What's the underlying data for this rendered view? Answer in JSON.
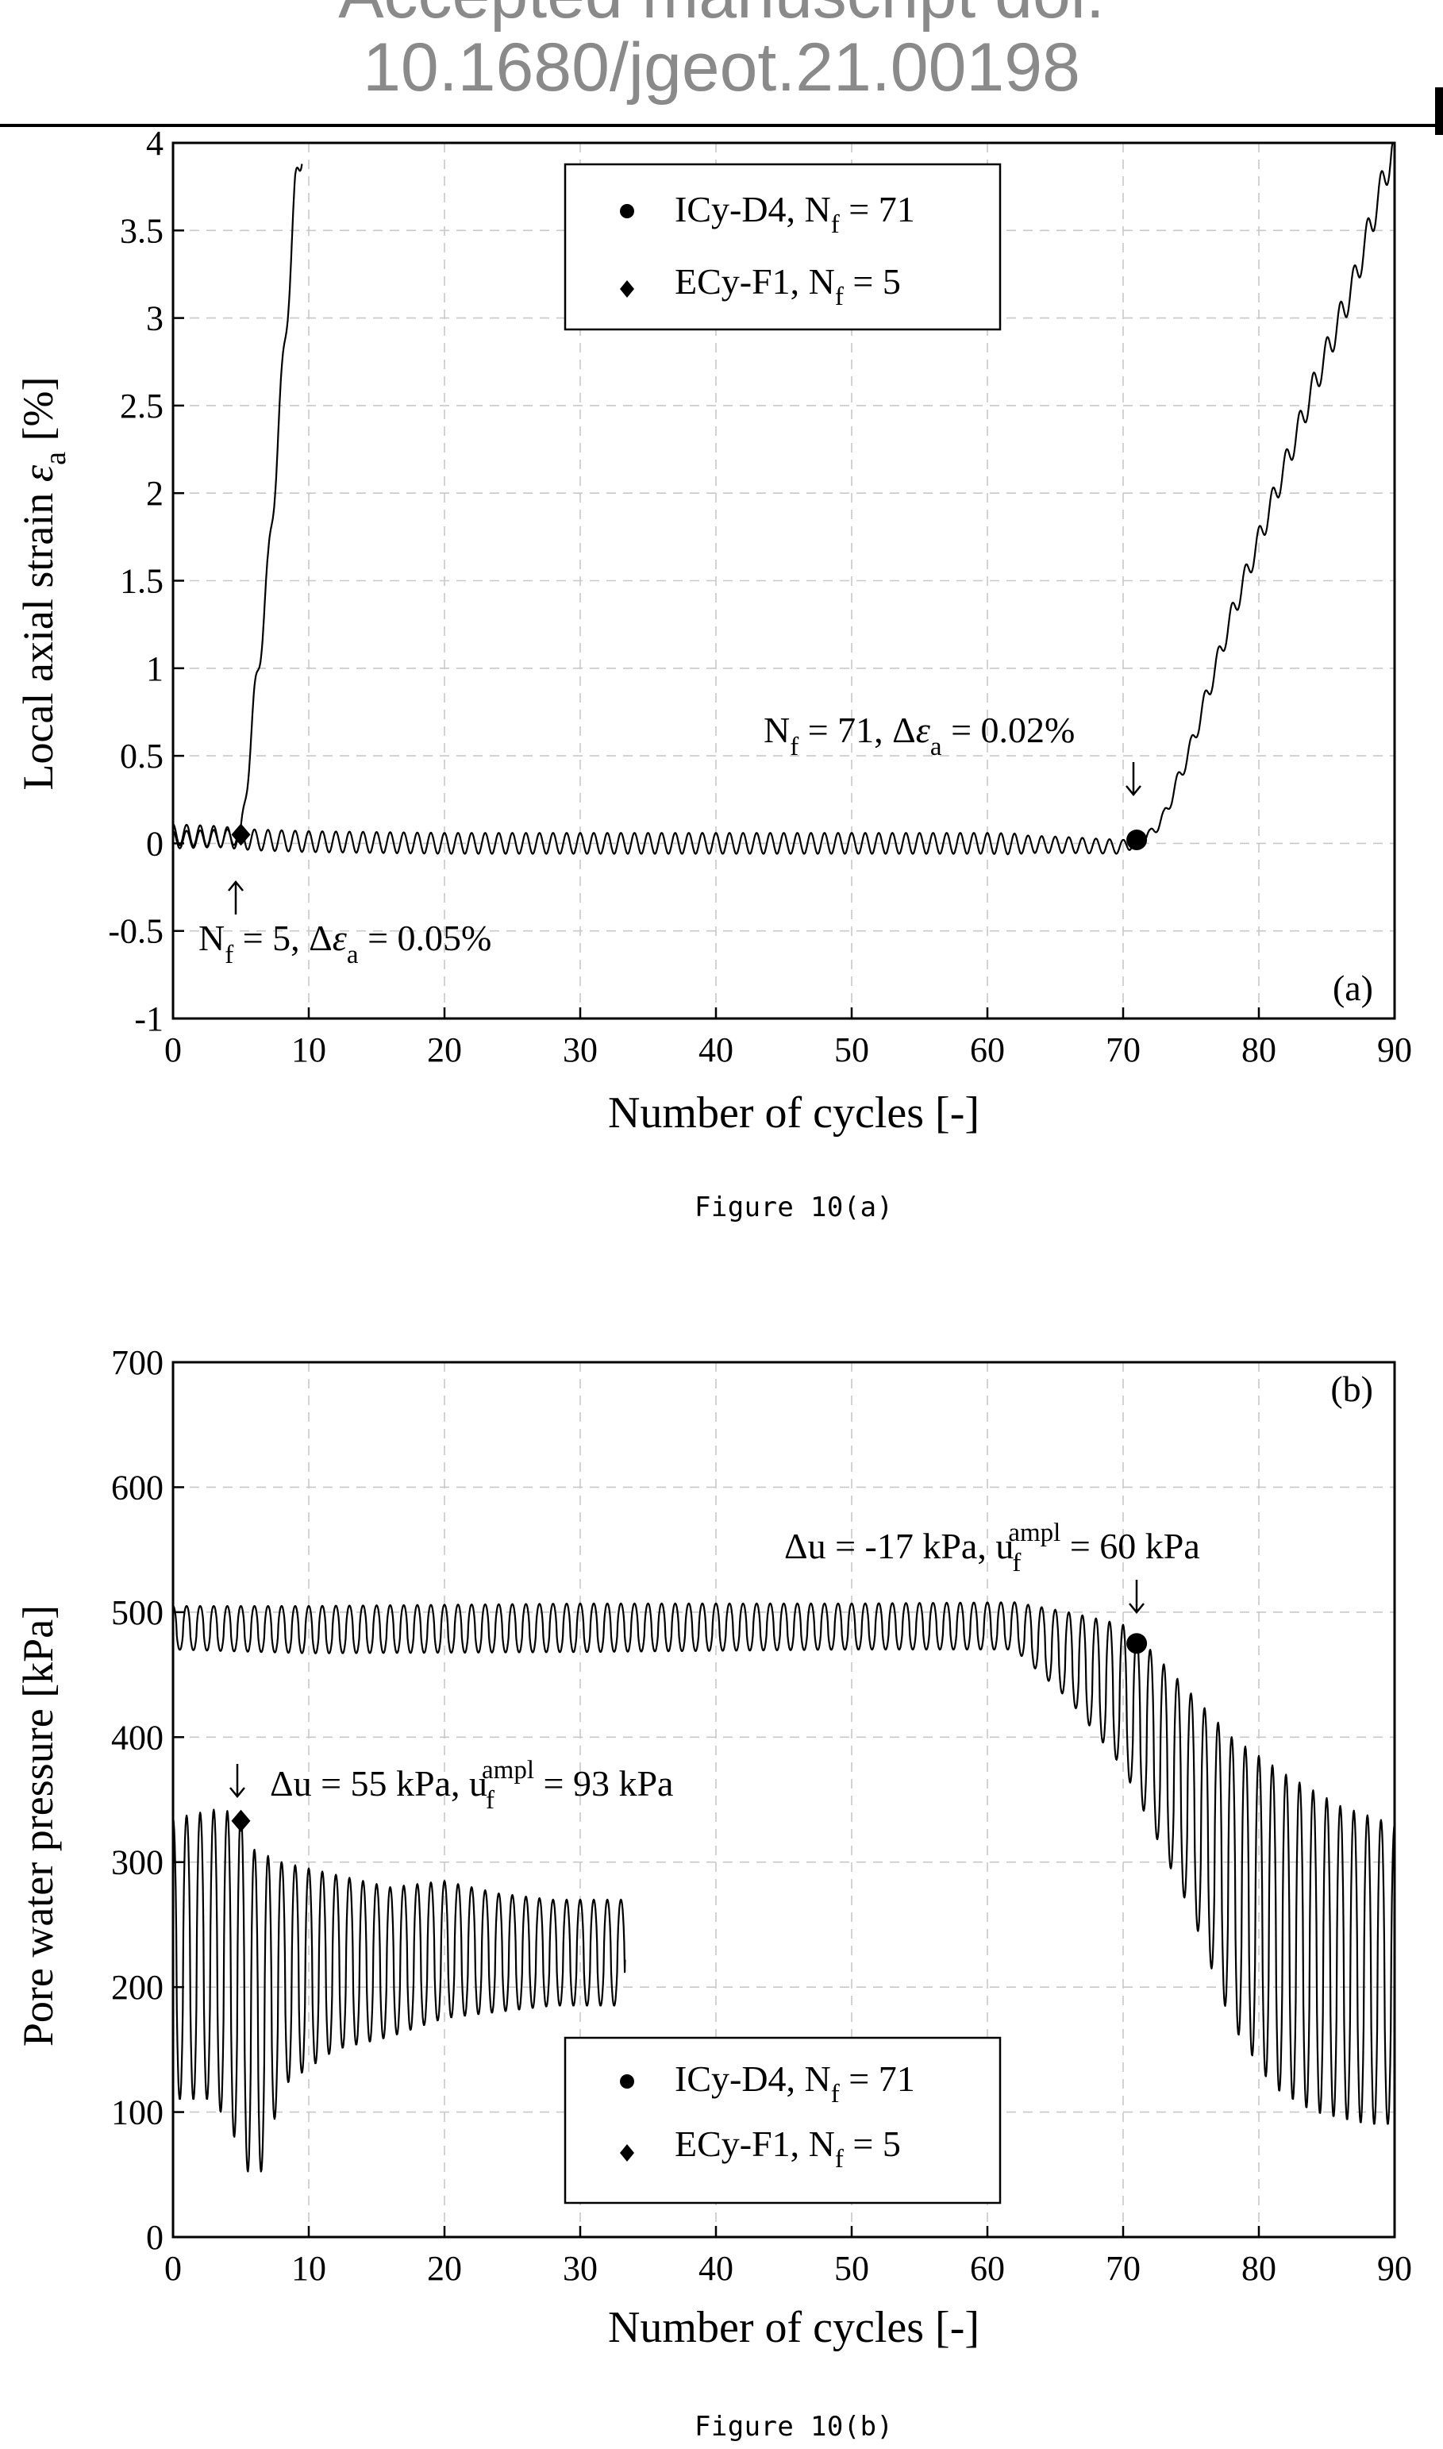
{
  "header": {
    "line1": "Accepted manuscript doi:",
    "line2": "10.1680/jgeot.21.00198"
  },
  "legend": {
    "icy": "ICy-D4, N",
    "icy_sub": "f",
    "icy_val": " = 71",
    "ecy": "ECy-F1, N",
    "ecy_sub": "f",
    "ecy_val": " = 5"
  },
  "chart_data": [
    {
      "type": "line",
      "panel": "(a)",
      "caption": "Figure 10(a)",
      "xlabel": "Number of cycles  [-]",
      "ylabel_main": "Local axial strain ",
      "ylabel_sym": "ε",
      "ylabel_sub": "a",
      "ylabel_unit": " [%]",
      "xlim": [
        0,
        90
      ],
      "ylim": [
        -1,
        4
      ],
      "xticks": [
        0,
        10,
        20,
        30,
        40,
        50,
        60,
        70,
        80,
        90
      ],
      "yticks": [
        -1,
        -0.5,
        0,
        0.5,
        1,
        1.5,
        2,
        2.5,
        3,
        3.5,
        4
      ],
      "ytick_labels": [
        "-1",
        "-0.5",
        "0",
        "0.5",
        "1",
        "1.5",
        "2",
        "2.5",
        "3",
        "3.5",
        "4"
      ],
      "grid": true,
      "legend_position": "top-center",
      "series": [
        {
          "name": "ICy-D4, Nf = 71",
          "marker": "circle",
          "failure_point": [
            71,
            0.02
          ],
          "trace": [
            [
              0,
              0.05
            ],
            [
              3,
              0.04
            ],
            [
              6,
              0.02
            ],
            [
              10,
              0.01
            ],
            [
              20,
              0.0
            ],
            [
              30,
              0.0
            ],
            [
              40,
              0.0
            ],
            [
              50,
              0.0
            ],
            [
              60,
              0.0
            ],
            [
              66,
              -0.01
            ],
            [
              70,
              -0.02
            ],
            [
              71,
              0.02
            ],
            [
              72,
              0.05
            ],
            [
              73,
              0.15
            ],
            [
              75,
              0.55
            ],
            [
              78,
              1.3
            ],
            [
              81,
              1.95
            ],
            [
              84,
              2.6
            ],
            [
              87,
              3.2
            ],
            [
              88.5,
              3.6
            ],
            [
              90,
              4.0
            ]
          ],
          "amplitude": [
            [
              0,
              0.06
            ],
            [
              62,
              0.06
            ],
            [
              63,
              0.05
            ],
            [
              70,
              0.04
            ],
            [
              72,
              0.03
            ],
            [
              76,
              0.06
            ],
            [
              90,
              0.1
            ]
          ],
          "cycles": 90
        },
        {
          "name": "ECy-F1, Nf = 5",
          "marker": "diamond",
          "failure_point": [
            5,
            0.05
          ],
          "trace": [
            [
              0,
              0.02
            ],
            [
              4,
              0.03
            ],
            [
              5,
              0.05
            ],
            [
              5.5,
              0.4
            ],
            [
              6,
              0.8
            ],
            [
              7,
              1.55
            ],
            [
              8,
              2.6
            ],
            [
              9,
              3.7
            ],
            [
              9.5,
              4.0
            ]
          ],
          "amplitude": [
            [
              0,
              0.05
            ],
            [
              5,
              0.05
            ],
            [
              6,
              0.1
            ],
            [
              9.5,
              0.12
            ]
          ],
          "cycles": 9
        }
      ],
      "annotations": [
        {
          "id": "icy",
          "main": "N",
          "sub": "f",
          "rest": " = 71, Δ",
          "sym": "ε",
          "sub2": "a",
          "tail": " = 0.02%",
          "arrow": "down"
        },
        {
          "id": "ecy",
          "main": "N",
          "sub": "f",
          "rest": " = 5, Δ",
          "sym": "ε",
          "sub2": "a",
          "tail": " = 0.05%",
          "arrow": "up"
        }
      ]
    },
    {
      "type": "line",
      "panel": "(b)",
      "caption": "Figure 10(b)",
      "xlabel": "Number of cycles  [-]",
      "ylabel": "Pore water pressure [kPa]",
      "xlim": [
        0,
        90
      ],
      "ylim": [
        0,
        700
      ],
      "xticks": [
        0,
        10,
        20,
        30,
        40,
        50,
        60,
        70,
        80,
        90
      ],
      "yticks": [
        0,
        100,
        200,
        300,
        400,
        500,
        600,
        700
      ],
      "ytick_labels": [
        "0",
        "100",
        "200",
        "300",
        "400",
        "500",
        "600",
        "700"
      ],
      "grid": true,
      "legend_position": "bottom-center",
      "series": [
        {
          "name": "ICy-D4, Nf = 71",
          "marker": "circle",
          "failure_point": [
            71,
            475
          ],
          "upper": [
            [
              0,
              505
            ],
            [
              10,
              505
            ],
            [
              30,
              507
            ],
            [
              50,
              507
            ],
            [
              62,
              508
            ],
            [
              66,
              500
            ],
            [
              70,
              490
            ],
            [
              72,
              470
            ],
            [
              75,
              435
            ],
            [
              78,
              400
            ],
            [
              82,
              370
            ],
            [
              86,
              345
            ],
            [
              90,
              330
            ]
          ],
          "lower": [
            [
              0,
              470
            ],
            [
              10,
              467
            ],
            [
              30,
              468
            ],
            [
              50,
              470
            ],
            [
              62,
              470
            ],
            [
              66,
              430
            ],
            [
              70,
              375
            ],
            [
              72,
              330
            ],
            [
              75,
              260
            ],
            [
              78,
              170
            ],
            [
              81,
              120
            ],
            [
              84,
              100
            ],
            [
              88,
              90
            ],
            [
              90,
              90
            ]
          ],
          "cycles": 90
        },
        {
          "name": "ECy-F1, Nf = 5",
          "marker": "diamond",
          "failure_point": [
            5,
            333
          ],
          "upper": [
            [
              0,
              335
            ],
            [
              3,
              342
            ],
            [
              5,
              340
            ],
            [
              6,
              310
            ],
            [
              8,
              300
            ],
            [
              12,
              290
            ],
            [
              16,
              280
            ],
            [
              20,
              285
            ],
            [
              24,
              275
            ],
            [
              28,
              270
            ],
            [
              33,
              270
            ]
          ],
          "lower": [
            [
              0,
              110
            ],
            [
              3,
              110
            ],
            [
              5,
              70
            ],
            [
              6,
              35
            ],
            [
              7,
              70
            ],
            [
              8,
              120
            ],
            [
              12,
              150
            ],
            [
              16,
              160
            ],
            [
              20,
              175
            ],
            [
              24,
              180
            ],
            [
              28,
              185
            ],
            [
              33,
              185
            ]
          ],
          "end": [
            33.3,
            222
          ],
          "cycles": 33
        }
      ],
      "annotations": [
        {
          "id": "icy",
          "main": "Δu = -17 kPa, u",
          "sub": "f",
          "sup": "ampl",
          "tail": " = 60 kPa",
          "arrow": "down"
        },
        {
          "id": "ecy",
          "main": "Δu = 55 kPa, u",
          "sub": "f",
          "sup": "ampl",
          "tail": " = 93 kPa",
          "arrow": "down"
        }
      ]
    }
  ]
}
